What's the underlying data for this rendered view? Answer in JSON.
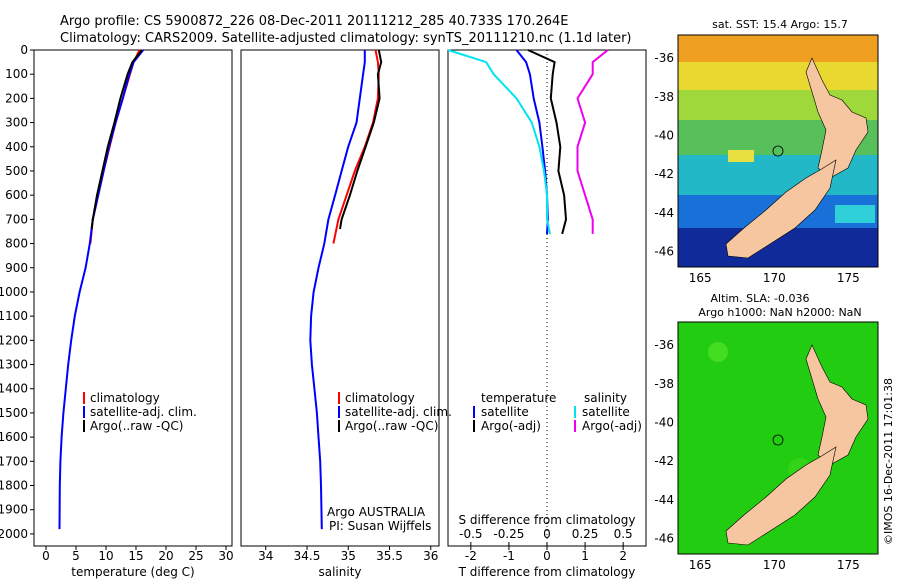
{
  "header": {
    "line1": "Argo profile: CS 5900872_226 08-Dec-2011 20111212_285 40.733S 170.264E",
    "line2": "Climatology: CARS2009. Satellite-adjusted climatology: synTS_20111210.nc (1.1d later)"
  },
  "colors": {
    "climatology": "#ff0000",
    "satellite": "#0000ff",
    "argo": "#000000",
    "satellite_salinity": "#00e5ee",
    "argo_salinity": "#ee00ee",
    "land": "#f5c6a0",
    "sla_sea": "#22cc11"
  },
  "chart_data": [
    {
      "type": "line",
      "xlabel": "temperature (deg C)",
      "xlim": [
        -2,
        31
      ],
      "ylim": [
        0,
        2050
      ],
      "yticks": [
        "0",
        "100",
        "200",
        "300",
        "400",
        "500",
        "600",
        "700",
        "800",
        "900",
        "1000",
        "1100",
        "1200",
        "1300",
        "1400",
        "1500",
        "1600",
        "1700",
        "1800",
        "1900",
        "2000"
      ],
      "xticks": [
        "0",
        "5",
        "10",
        "15",
        "20",
        "25",
        "30"
      ],
      "legend": [
        "climatology",
        "satellite-adj. clim.",
        "Argo(..raw -QC)"
      ],
      "series": [
        {
          "name": "climatology",
          "x": [
            15.6,
            14.6,
            14.0,
            12.8,
            11.6,
            10.6,
            9.6,
            8.7,
            7.8,
            7.4
          ],
          "y": [
            0,
            50,
            100,
            200,
            300,
            400,
            500,
            600,
            700,
            800
          ]
        },
        {
          "name": "satellite-adj. clim.",
          "x": [
            16.2,
            14.6,
            13.9,
            12.8,
            11.6,
            10.5,
            9.6,
            8.7,
            7.8,
            7.3,
            6.6,
            5.6,
            4.8,
            4.2,
            3.7,
            3.3,
            2.9,
            2.6,
            2.4,
            2.3,
            2.25
          ],
          "y": [
            0,
            50,
            100,
            200,
            300,
            400,
            500,
            600,
            700,
            800,
            900,
            1000,
            1100,
            1200,
            1300,
            1400,
            1500,
            1600,
            1700,
            1800,
            1980
          ]
        },
        {
          "name": "Argo(..raw -QC)",
          "x": [
            16.0,
            14.4,
            13.6,
            12.4,
            11.4,
            10.3,
            9.4,
            8.5,
            7.8,
            7.6
          ],
          "y": [
            0,
            50,
            100,
            200,
            300,
            400,
            500,
            600,
            700,
            740
          ]
        }
      ]
    },
    {
      "type": "line",
      "xlabel": "salinity",
      "xlim": [
        33.7,
        36.1
      ],
      "ylim": [
        0,
        2050
      ],
      "xticks": [
        "34",
        "34.5",
        "35",
        "35.5",
        "36"
      ],
      "legend": [
        "climatology",
        "satellite-adj. clim.",
        "Argo(..raw -QC)"
      ],
      "annotation": [
        "Argo AUSTRALIA",
        "PI: Susan Wijffels"
      ],
      "series": [
        {
          "name": "climatology",
          "x": [
            35.33,
            35.36,
            35.37,
            35.36,
            35.3,
            35.2,
            35.08,
            34.98,
            34.88,
            34.82
          ],
          "y": [
            0,
            50,
            100,
            200,
            300,
            400,
            500,
            600,
            700,
            800
          ]
        },
        {
          "name": "satellite-adj. clim.",
          "x": [
            35.2,
            35.2,
            35.18,
            35.14,
            35.1,
            35.0,
            34.92,
            34.84,
            34.76,
            34.71,
            34.64,
            34.58,
            34.55,
            34.54,
            34.56,
            34.59,
            34.62,
            34.64,
            34.66,
            34.67,
            34.68
          ],
          "y": [
            0,
            50,
            100,
            200,
            300,
            400,
            500,
            600,
            700,
            800,
            900,
            1000,
            1100,
            1200,
            1300,
            1400,
            1500,
            1600,
            1700,
            1800,
            1980
          ]
        },
        {
          "name": "Argo(..raw -QC)",
          "x": [
            35.37,
            35.4,
            35.36,
            35.38,
            35.31,
            35.21,
            35.11,
            35.02,
            34.92,
            34.9
          ],
          "y": [
            0,
            50,
            100,
            200,
            300,
            400,
            500,
            600,
            700,
            740
          ]
        }
      ]
    },
    {
      "type": "line",
      "xlabel": "T difference from climatology",
      "xlabel2": "S difference from climatology",
      "xlim": [
        -2.6,
        2.6
      ],
      "ylim": [
        0,
        2050
      ],
      "xticks": [
        "-2",
        "-1",
        "0",
        "1",
        "2"
      ],
      "sticks": [
        "-0.5",
        "-0.25",
        "0",
        "0.25",
        "0.5"
      ],
      "legend_titles": [
        "temperature",
        "salinity"
      ],
      "legend": [
        "satellite",
        "Argo(-adj)",
        "satellite",
        "Argo(-adj)"
      ],
      "series": [
        {
          "name": "satellite",
          "x": [
            -0.8,
            -0.55,
            -0.45,
            -0.35,
            -0.2,
            -0.12,
            -0.05,
            0.0,
            0.02,
            0.0
          ],
          "y": [
            0,
            50,
            100,
            200,
            300,
            400,
            500,
            600,
            700,
            760
          ]
        },
        {
          "name": "Argo(-adj)",
          "x": [
            -0.5,
            0.2,
            0.15,
            0.1,
            0.25,
            0.35,
            0.3,
            0.45,
            0.5,
            0.4
          ],
          "y": [
            0,
            50,
            100,
            200,
            300,
            400,
            500,
            600,
            700,
            760
          ]
        },
        {
          "name": "satellite",
          "x": [
            -0.65,
            -0.4,
            -0.35,
            -0.2,
            -0.1,
            -0.05,
            -0.02,
            0.0,
            0.0,
            0.02
          ],
          "y": [
            0,
            50,
            100,
            200,
            300,
            400,
            500,
            600,
            700,
            760
          ]
        },
        {
          "name": "Argo(-adj)",
          "x": [
            0.4,
            0.3,
            0.3,
            0.2,
            0.25,
            0.2,
            0.2,
            0.25,
            0.3,
            0.3
          ],
          "y": [
            0,
            50,
            100,
            200,
            300,
            400,
            500,
            600,
            700,
            760
          ]
        }
      ]
    },
    {
      "type": "heatmap",
      "title": "sat. SST: 15.4  Argo: 15.7",
      "xlim": [
        163.5,
        177
      ],
      "ylim": [
        -46.8,
        -34.8
      ],
      "xticks": [
        "165",
        "170",
        "175"
      ],
      "yticks": [
        "-36",
        "-38",
        "-40",
        "-42",
        "-44",
        "-46"
      ]
    },
    {
      "type": "heatmap",
      "title": [
        "Altim. SLA: -0.036",
        "Argo h1000: NaN h2000: NaN"
      ],
      "xlim": [
        163.5,
        177
      ],
      "ylim": [
        -46.8,
        -34.8
      ],
      "xticks": [
        "165",
        "170",
        "175"
      ],
      "yticks": [
        "-36",
        "-38",
        "-40",
        "-42",
        "-44",
        "-46"
      ]
    }
  ],
  "watermark": "©IMOS 16-Dec-2011 17:01:38"
}
